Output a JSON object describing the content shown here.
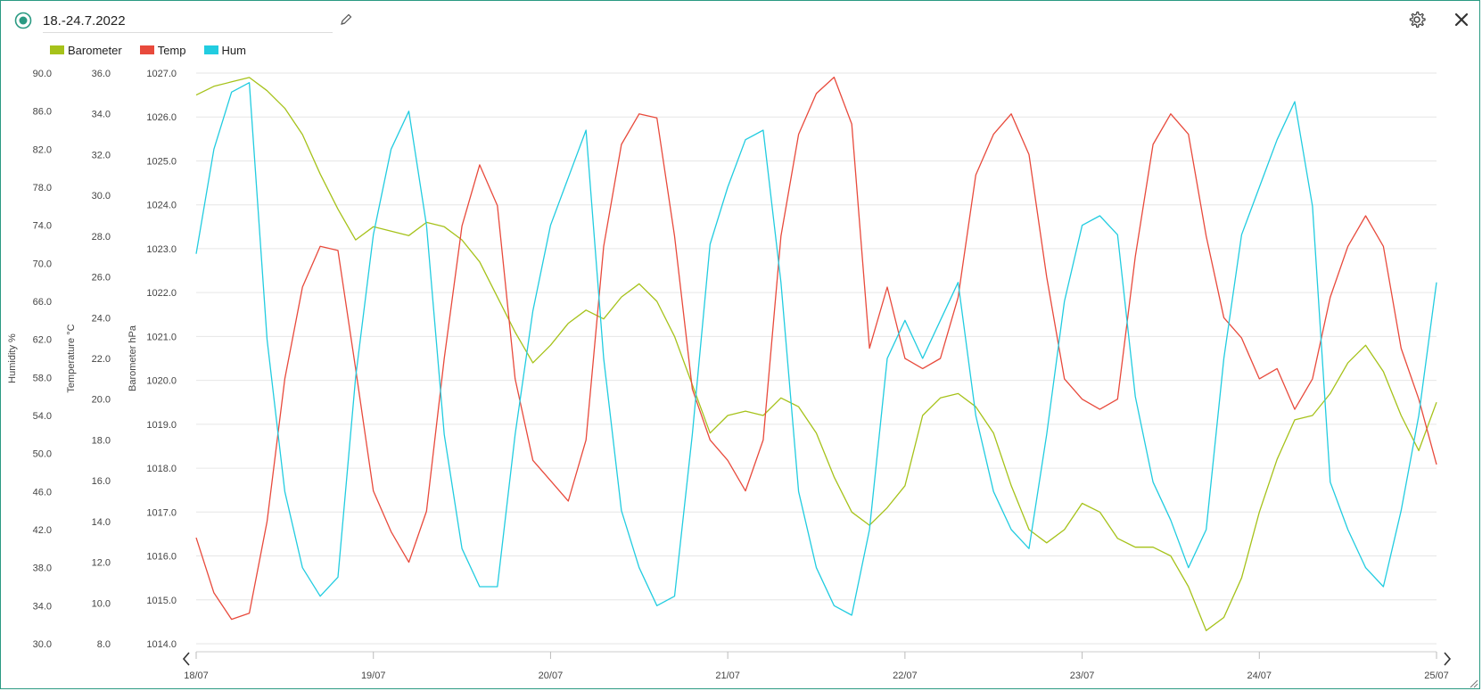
{
  "header": {
    "title": "18.-24.7.2022",
    "colors": {
      "title_icon": "#2a9a82"
    }
  },
  "legend": [
    {
      "label": "Barometer",
      "color": "#a6c21a"
    },
    {
      "label": "Temp",
      "color": "#e84a3c"
    },
    {
      "label": "Hum",
      "color": "#22cce0"
    }
  ],
  "chart_data": {
    "type": "line",
    "x_tick_labels": [
      "18/07",
      "19/07",
      "20/07",
      "21/07",
      "22/07",
      "23/07",
      "24/07",
      "25/07"
    ],
    "xlim": [
      0,
      7
    ],
    "axes": [
      {
        "key": "hum",
        "label": "Humidity %",
        "ylim": [
          30,
          90
        ],
        "ticks": [
          "30.0",
          "34.0",
          "38.0",
          "42.0",
          "46.0",
          "50.0",
          "54.0",
          "58.0",
          "62.0",
          "66.0",
          "70.0",
          "74.0",
          "78.0",
          "82.0",
          "86.0",
          "90.0"
        ]
      },
      {
        "key": "temp",
        "label": "Temperature °C",
        "ylim": [
          8,
          36
        ],
        "ticks": [
          "8.0",
          "10.0",
          "12.0",
          "14.0",
          "16.0",
          "18.0",
          "20.0",
          "22.0",
          "24.0",
          "26.0",
          "28.0",
          "30.0",
          "32.0",
          "34.0",
          "36.0"
        ]
      },
      {
        "key": "baro",
        "label": "Barometer hPa",
        "ylim": [
          1014,
          1027
        ],
        "ticks": [
          "1014.0",
          "1015.0",
          "1016.0",
          "1017.0",
          "1018.0",
          "1019.0",
          "1020.0",
          "1021.0",
          "1022.0",
          "1023.0",
          "1024.0",
          "1025.0",
          "1026.0",
          "1027.0"
        ]
      }
    ],
    "grid": true,
    "legend_position": "top-left",
    "series": [
      {
        "name": "Barometer",
        "axis": "baro",
        "color": "#a6c21a",
        "x": [
          0,
          0.1,
          0.2,
          0.3,
          0.4,
          0.5,
          0.6,
          0.7,
          0.8,
          0.9,
          1.0,
          1.1,
          1.2,
          1.3,
          1.4,
          1.5,
          1.6,
          1.7,
          1.8,
          1.9,
          2.0,
          2.1,
          2.2,
          2.3,
          2.4,
          2.5,
          2.6,
          2.7,
          2.8,
          2.9,
          3.0,
          3.1,
          3.2,
          3.3,
          3.4,
          3.5,
          3.6,
          3.7,
          3.8,
          3.9,
          4.0,
          4.1,
          4.2,
          4.3,
          4.4,
          4.5,
          4.6,
          4.7,
          4.8,
          4.9,
          5.0,
          5.1,
          5.2,
          5.3,
          5.4,
          5.5,
          5.6,
          5.7,
          5.8,
          5.9,
          6.0,
          6.1,
          6.2,
          6.3,
          6.4,
          6.5,
          6.6,
          6.7,
          6.8,
          6.9,
          7.0
        ],
        "y": [
          1026.5,
          1026.7,
          1026.8,
          1026.9,
          1026.6,
          1026.2,
          1025.6,
          1024.7,
          1023.9,
          1023.2,
          1023.5,
          1023.4,
          1023.3,
          1023.6,
          1023.5,
          1023.2,
          1022.7,
          1021.9,
          1021.1,
          1020.4,
          1020.8,
          1021.3,
          1021.6,
          1021.4,
          1021.9,
          1022.2,
          1021.8,
          1021.0,
          1019.9,
          1018.8,
          1019.2,
          1019.3,
          1019.2,
          1019.6,
          1019.4,
          1018.8,
          1017.8,
          1017.0,
          1016.7,
          1017.1,
          1017.6,
          1019.2,
          1019.6,
          1019.7,
          1019.4,
          1018.8,
          1017.6,
          1016.6,
          1016.3,
          1016.6,
          1017.2,
          1017.0,
          1016.4,
          1016.2,
          1016.2,
          1016.0,
          1015.3,
          1014.3,
          1014.6,
          1015.5,
          1017.0,
          1018.2,
          1019.1,
          1019.2,
          1019.7,
          1020.4,
          1020.8,
          1020.2,
          1019.2,
          1018.4,
          1019.5
        ]
      },
      {
        "name": "Temp",
        "axis": "temp",
        "color": "#e84a3c",
        "x": [
          0,
          0.1,
          0.2,
          0.3,
          0.4,
          0.5,
          0.6,
          0.7,
          0.8,
          0.9,
          1.0,
          1.1,
          1.2,
          1.3,
          1.4,
          1.5,
          1.6,
          1.7,
          1.8,
          1.9,
          2.0,
          2.1,
          2.2,
          2.3,
          2.4,
          2.5,
          2.6,
          2.7,
          2.8,
          2.9,
          3.0,
          3.1,
          3.2,
          3.3,
          3.4,
          3.5,
          3.6,
          3.7,
          3.8,
          3.9,
          4.0,
          4.1,
          4.2,
          4.3,
          4.4,
          4.5,
          4.6,
          4.7,
          4.8,
          4.9,
          5.0,
          5.1,
          5.2,
          5.3,
          5.4,
          5.5,
          5.6,
          5.7,
          5.8,
          5.9,
          6.0,
          6.1,
          6.2,
          6.3,
          6.4,
          6.5,
          6.6,
          6.7,
          6.8,
          6.9,
          7.0
        ],
        "y": [
          13.2,
          10.5,
          9.2,
          9.5,
          14.0,
          21.0,
          25.5,
          27.5,
          27.3,
          21.5,
          15.5,
          13.5,
          12.0,
          14.5,
          22.0,
          28.5,
          31.5,
          29.5,
          21.0,
          17.0,
          16.0,
          15.0,
          18.0,
          27.5,
          32.5,
          34.0,
          33.8,
          28.0,
          20.5,
          18.0,
          17.0,
          15.5,
          18.0,
          28.0,
          33.0,
          35.0,
          35.8,
          33.5,
          22.5,
          25.5,
          22.0,
          21.5,
          22.0,
          25.0,
          31.0,
          33.0,
          34.0,
          32.0,
          26.0,
          21.0,
          20.0,
          19.5,
          20.0,
          27.0,
          32.5,
          34.0,
          33.0,
          28.0,
          24.0,
          23.0,
          21.0,
          21.5,
          19.5,
          21.0,
          25.0,
          27.5,
          29.0,
          27.5,
          22.5,
          20.0,
          16.8
        ]
      },
      {
        "name": "Hum",
        "axis": "hum",
        "color": "#22cce0",
        "x": [
          0,
          0.1,
          0.2,
          0.3,
          0.4,
          0.5,
          0.6,
          0.7,
          0.8,
          0.9,
          1.0,
          1.1,
          1.2,
          1.3,
          1.4,
          1.5,
          1.6,
          1.7,
          1.8,
          1.9,
          2.0,
          2.1,
          2.2,
          2.3,
          2.4,
          2.5,
          2.6,
          2.7,
          2.8,
          2.9,
          3.0,
          3.1,
          3.2,
          3.3,
          3.4,
          3.5,
          3.6,
          3.7,
          3.8,
          3.9,
          4.0,
          4.1,
          4.2,
          4.3,
          4.4,
          4.5,
          4.6,
          4.7,
          4.8,
          4.9,
          5.0,
          5.1,
          5.2,
          5.3,
          5.4,
          5.5,
          5.6,
          5.7,
          5.8,
          5.9,
          6.0,
          6.1,
          6.2,
          6.3,
          6.4,
          6.5,
          6.6,
          6.7,
          6.8,
          6.9,
          7.0
        ],
        "y": [
          71.0,
          82.0,
          88.0,
          89.0,
          62.0,
          46.0,
          38.0,
          35.0,
          37.0,
          58.0,
          73.0,
          82.0,
          86.0,
          74.0,
          52.0,
          40.0,
          36.0,
          36.0,
          52.0,
          65.0,
          74.0,
          79.0,
          84.0,
          60.0,
          44.0,
          38.0,
          34.0,
          35.0,
          52.0,
          72.0,
          78.0,
          83.0,
          84.0,
          68.0,
          46.0,
          38.0,
          34.0,
          33.0,
          42.0,
          60.0,
          64.0,
          60.0,
          64.0,
          68.0,
          54.0,
          46.0,
          42.0,
          40.0,
          52.0,
          66.0,
          74.0,
          75.0,
          73.0,
          56.0,
          47.0,
          43.0,
          38.0,
          42.0,
          60.0,
          73.0,
          78.0,
          83.0,
          87.0,
          76.0,
          47.0,
          42.0,
          38.0,
          36.0,
          44.0,
          54.0,
          68.0
        ]
      }
    ]
  }
}
